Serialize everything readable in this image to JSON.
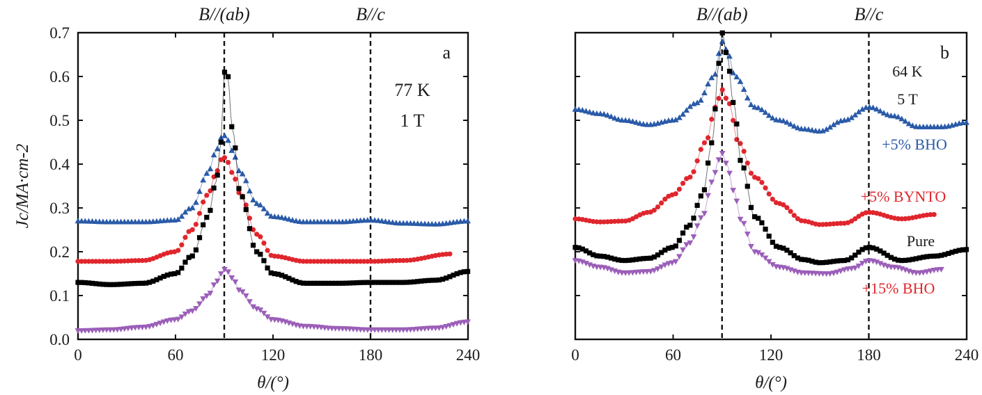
{
  "chart_data": [
    {
      "panel": "a",
      "type": "scatter",
      "condition_lines": [
        "77 K",
        "1 T"
      ],
      "top_labels": [
        {
          "text": "B//(ab)",
          "x": 90
        },
        {
          "text": "B//c",
          "x": 180
        }
      ],
      "xlabel": "θ/(°)",
      "ylabel": "Jc/MA·cm-2",
      "xlim": [
        0,
        240
      ],
      "ylim": [
        0,
        0.7
      ],
      "xticks": [
        "0",
        "60",
        "120",
        "180",
        "240"
      ],
      "yticks": [
        "0.0",
        "0.1",
        "0.2",
        "0.3",
        "0.4",
        "0.5",
        "0.6",
        "0.7"
      ],
      "series": [
        {
          "name": "+5% BHO",
          "color": "#2a5aa8",
          "marker": "triangle-up",
          "x": [
            0,
            20,
            40,
            60,
            70,
            80,
            85,
            88,
            90,
            92,
            95,
            100,
            110,
            120,
            140,
            160,
            180,
            200,
            220,
            240
          ],
          "y": [
            0.27,
            0.268,
            0.268,
            0.272,
            0.3,
            0.38,
            0.43,
            0.46,
            0.465,
            0.455,
            0.43,
            0.38,
            0.31,
            0.28,
            0.268,
            0.268,
            0.272,
            0.265,
            0.263,
            0.27
          ]
        },
        {
          "name": "+5% BYNTO",
          "color": "#e0262d",
          "marker": "circle",
          "x": [
            0,
            20,
            40,
            60,
            70,
            80,
            85,
            88,
            90,
            92,
            95,
            100,
            110,
            120,
            140,
            160,
            180,
            200,
            230
          ],
          "y": [
            0.178,
            0.178,
            0.18,
            0.2,
            0.25,
            0.33,
            0.38,
            0.41,
            0.415,
            0.405,
            0.38,
            0.33,
            0.24,
            0.19,
            0.178,
            0.178,
            0.178,
            0.18,
            0.195
          ]
        },
        {
          "name": "Pure",
          "color": "#000000",
          "marker": "square",
          "x": [
            0,
            20,
            40,
            60,
            70,
            80,
            85,
            88,
            90,
            92,
            95,
            100,
            110,
            120,
            140,
            160,
            180,
            200,
            220,
            240
          ],
          "y": [
            0.13,
            0.125,
            0.128,
            0.15,
            0.19,
            0.28,
            0.36,
            0.45,
            0.61,
            0.605,
            0.48,
            0.33,
            0.2,
            0.15,
            0.128,
            0.128,
            0.13,
            0.13,
            0.135,
            0.155
          ]
        },
        {
          "name": "+15% BHO",
          "color": "#9b5fb8",
          "marker": "triangle-down",
          "x": [
            0,
            20,
            40,
            60,
            70,
            80,
            85,
            88,
            90,
            92,
            95,
            100,
            110,
            120,
            140,
            160,
            180,
            200,
            220,
            240
          ],
          "y": [
            0.02,
            0.022,
            0.028,
            0.045,
            0.065,
            0.1,
            0.13,
            0.15,
            0.16,
            0.155,
            0.14,
            0.11,
            0.07,
            0.045,
            0.03,
            0.025,
            0.022,
            0.022,
            0.026,
            0.04
          ]
        }
      ]
    },
    {
      "panel": "b",
      "type": "scatter",
      "condition_lines": [
        "64 K",
        "5 T"
      ],
      "top_labels": [
        {
          "text": "B//(ab)",
          "x": 90
        },
        {
          "text": "B//c",
          "x": 180
        }
      ],
      "xlabel": "θ/(°)",
      "xlim": [
        0,
        240
      ],
      "ylim": [
        0,
        0.7
      ],
      "xticks": [
        "0",
        "60",
        "120",
        "180",
        "240"
      ],
      "series": [
        {
          "name": "+5% BHO",
          "color": "#2a5aa8",
          "marker": "triangle-up",
          "x": [
            0,
            15,
            30,
            45,
            60,
            75,
            85,
            90,
            93,
            98,
            110,
            125,
            140,
            150,
            165,
            180,
            195,
            210,
            225,
            240
          ],
          "y": [
            0.525,
            0.515,
            0.5,
            0.49,
            0.5,
            0.54,
            0.6,
            0.68,
            0.66,
            0.6,
            0.53,
            0.5,
            0.48,
            0.475,
            0.5,
            0.53,
            0.51,
            0.485,
            0.485,
            0.495
          ]
        },
        {
          "name": "+5% BYNTO",
          "color": "#e0262d",
          "marker": "circle",
          "x": [
            0,
            15,
            30,
            45,
            60,
            70,
            80,
            86,
            90,
            94,
            100,
            110,
            125,
            140,
            150,
            165,
            180,
            200,
            220
          ],
          "y": [
            0.275,
            0.268,
            0.27,
            0.29,
            0.33,
            0.37,
            0.45,
            0.53,
            0.57,
            0.54,
            0.45,
            0.37,
            0.31,
            0.27,
            0.262,
            0.265,
            0.29,
            0.275,
            0.285
          ]
        },
        {
          "name": "Pure",
          "color": "#000000",
          "marker": "square",
          "x": [
            0,
            15,
            30,
            45,
            60,
            70,
            78,
            84,
            88,
            90,
            93,
            97,
            102,
            110,
            125,
            140,
            150,
            165,
            180,
            200,
            220,
            240
          ],
          "y": [
            0.21,
            0.19,
            0.18,
            0.185,
            0.21,
            0.26,
            0.33,
            0.45,
            0.63,
            0.7,
            0.65,
            0.54,
            0.4,
            0.28,
            0.21,
            0.182,
            0.175,
            0.18,
            0.21,
            0.18,
            0.19,
            0.205
          ]
        },
        {
          "name": "+15% BHO",
          "color": "#9b5fb8",
          "marker": "triangle-down",
          "x": [
            0,
            15,
            30,
            45,
            60,
            70,
            78,
            84,
            88,
            90,
            93,
            97,
            102,
            110,
            125,
            140,
            155,
            170,
            180,
            195,
            210,
            225
          ],
          "y": [
            0.18,
            0.165,
            0.152,
            0.155,
            0.175,
            0.22,
            0.28,
            0.36,
            0.41,
            0.425,
            0.4,
            0.34,
            0.27,
            0.2,
            0.165,
            0.152,
            0.15,
            0.162,
            0.18,
            0.165,
            0.152,
            0.16
          ]
        }
      ],
      "series_labels": [
        {
          "text": "+5% BHO",
          "color": "#2a5aa8"
        },
        {
          "text": "+5% BYNTO",
          "color": "#e0262d"
        },
        {
          "text": "Pure",
          "color": "#1a1a1a"
        },
        {
          "text": "+15% BHO",
          "color": "#e0262d"
        }
      ]
    }
  ]
}
